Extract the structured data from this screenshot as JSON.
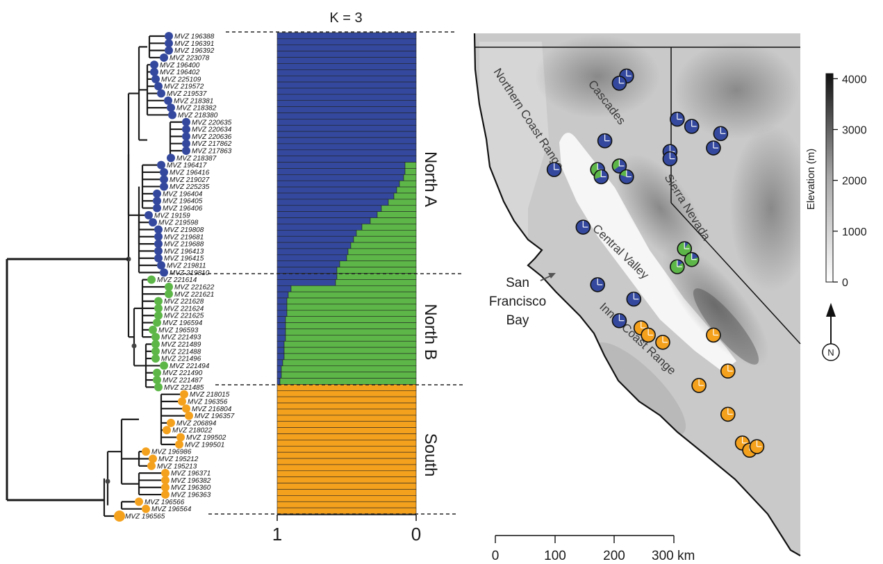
{
  "colors": {
    "north_a": "#34499e",
    "north_b": "#5db748",
    "south": "#f4a11d"
  },
  "title": "K = 3",
  "admixture": {
    "axis_ticks": [
      "1",
      "0"
    ],
    "cluster_labels": [
      "North A",
      "North B",
      "South"
    ],
    "rows_blue_fraction": [
      1,
      1,
      1,
      1,
      1,
      1,
      1,
      1,
      1,
      1,
      1,
      1,
      1,
      1,
      1,
      1,
      1,
      1,
      1,
      1,
      1,
      0.92,
      0.92,
      0.91,
      0.88,
      0.86,
      0.84,
      0.8,
      0.75,
      0.72,
      0.67,
      0.61,
      0.57,
      0.55,
      0.53,
      0.51,
      0.5,
      0.45,
      0.43,
      0.43,
      0.42,
      0.1,
      0.08,
      0.07,
      0.07,
      0.07,
      0.06,
      0.06,
      0.06,
      0.06,
      0.05,
      0.05,
      0.05,
      0.04,
      0.03,
      0.03,
      0.02,
      0,
      0,
      0,
      0,
      0,
      0,
      0,
      0,
      0,
      0,
      0,
      0,
      0,
      0,
      0,
      0,
      0,
      0,
      0,
      0,
      0
    ],
    "rows_orange_fraction": [
      0,
      0,
      0,
      0,
      0,
      0,
      0,
      0,
      0,
      0,
      0,
      0,
      0,
      0,
      0,
      0,
      0,
      0,
      0,
      0,
      0,
      0,
      0,
      0,
      0,
      0,
      0,
      0,
      0,
      0,
      0,
      0,
      0,
      0,
      0,
      0,
      0,
      0,
      0,
      0,
      0,
      0,
      0,
      0,
      0,
      0,
      0,
      0,
      0,
      0,
      0,
      0,
      0,
      0,
      0,
      0,
      0,
      1,
      1,
      1,
      1,
      1,
      1,
      1,
      1,
      1,
      1,
      1,
      1,
      1,
      1,
      1,
      1,
      1,
      1,
      1,
      1,
      1
    ]
  },
  "tree": {
    "tips": [
      {
        "label": "MVZ 196388",
        "group": "north_a"
      },
      {
        "label": "MVZ 196391",
        "group": "north_a"
      },
      {
        "label": "MVZ 196392",
        "group": "north_a"
      },
      {
        "label": "MVZ 223078",
        "group": "north_a"
      },
      {
        "label": "MVZ 196400",
        "group": "north_a"
      },
      {
        "label": "MVZ 196402",
        "group": "north_a"
      },
      {
        "label": "MVZ 225109",
        "group": "north_a"
      },
      {
        "label": "MVZ 219572",
        "group": "north_a"
      },
      {
        "label": "MVZ 219537",
        "group": "north_a"
      },
      {
        "label": "MVZ 218381",
        "group": "north_a"
      },
      {
        "label": "MVZ 218382",
        "group": "north_a"
      },
      {
        "label": "MVZ 218380",
        "group": "north_a"
      },
      {
        "label": "MVZ 220635",
        "group": "north_a"
      },
      {
        "label": "MVZ 220634",
        "group": "north_a"
      },
      {
        "label": "MVZ 220636",
        "group": "north_a"
      },
      {
        "label": "MVZ 217862",
        "group": "north_a"
      },
      {
        "label": "MVZ 217863",
        "group": "north_a"
      },
      {
        "label": "MVZ 218387",
        "group": "north_a"
      },
      {
        "label": "MVZ 196417",
        "group": "north_a"
      },
      {
        "label": "MVZ 196416",
        "group": "north_a"
      },
      {
        "label": "MVZ 219027",
        "group": "north_a"
      },
      {
        "label": "MVZ 225235",
        "group": "north_a"
      },
      {
        "label": "MVZ 196404",
        "group": "north_a"
      },
      {
        "label": "MVZ 196405",
        "group": "north_a"
      },
      {
        "label": "MVZ 196406",
        "group": "north_a"
      },
      {
        "label": "MVZ 19159",
        "group": "north_a"
      },
      {
        "label": "MVZ 219598",
        "group": "north_a"
      },
      {
        "label": "MVZ 219808",
        "group": "north_a"
      },
      {
        "label": "MVZ 219681",
        "group": "north_a"
      },
      {
        "label": "MVZ 219688",
        "group": "north_a"
      },
      {
        "label": "MVZ 196413",
        "group": "north_a"
      },
      {
        "label": "MVZ 196415",
        "group": "north_a"
      },
      {
        "label": "MVZ 219811",
        "group": "north_a"
      },
      {
        "label": "MVZ 219810",
        "group": "north_a"
      },
      {
        "label": "MVZ 221614",
        "group": "north_b"
      },
      {
        "label": "MVZ 221622",
        "group": "north_b"
      },
      {
        "label": "MVZ 221621",
        "group": "north_b"
      },
      {
        "label": "MVZ 221628",
        "group": "north_b"
      },
      {
        "label": "MVZ 221624",
        "group": "north_b"
      },
      {
        "label": "MVZ 221625",
        "group": "north_b"
      },
      {
        "label": "MVZ 196594",
        "group": "north_b"
      },
      {
        "label": "MVZ 196593",
        "group": "north_b"
      },
      {
        "label": "MVZ 221493",
        "group": "north_b"
      },
      {
        "label": "MVZ 221489",
        "group": "north_b"
      },
      {
        "label": "MVZ 221488",
        "group": "north_b"
      },
      {
        "label": "MVZ 221496",
        "group": "north_b"
      },
      {
        "label": "MVZ 221494",
        "group": "north_b"
      },
      {
        "label": "MVZ 221490",
        "group": "north_b"
      },
      {
        "label": "MVZ 221487",
        "group": "north_b"
      },
      {
        "label": "MVZ 221485",
        "group": "north_b"
      },
      {
        "label": "MVZ 218015",
        "group": "south"
      },
      {
        "label": "MVZ 196356",
        "group": "south"
      },
      {
        "label": "MVZ 216804",
        "group": "south"
      },
      {
        "label": "MVZ 196357",
        "group": "south"
      },
      {
        "label": "MVZ 206894",
        "group": "south"
      },
      {
        "label": "MVZ 218022",
        "group": "south"
      },
      {
        "label": "MVZ 199502",
        "group": "south"
      },
      {
        "label": "MVZ 199501",
        "group": "south"
      },
      {
        "label": "MVZ 196986",
        "group": "south"
      },
      {
        "label": "MVZ 195212",
        "group": "south"
      },
      {
        "label": "MVZ 195213",
        "group": "south"
      },
      {
        "label": "MVZ 196371",
        "group": "south"
      },
      {
        "label": "MVZ 196382",
        "group": "south"
      },
      {
        "label": "MVZ 196360",
        "group": "south"
      },
      {
        "label": "MVZ 196363",
        "group": "south"
      },
      {
        "label": "MVZ 196566",
        "group": "south"
      },
      {
        "label": "MVZ 196564",
        "group": "south"
      },
      {
        "label": "MVZ 196565",
        "group": "south"
      }
    ]
  },
  "map": {
    "region_labels": [
      "Northern Coast Range",
      "Cascades",
      "Sierra Nevada",
      "Central Valley",
      "Inner Coast Range"
    ],
    "bay_label": [
      "San",
      "Francisco",
      "Bay"
    ],
    "sample_sites": [
      {
        "lon": -122.3,
        "lat": 41.6,
        "pie": [
          1,
          0,
          0
        ]
      },
      {
        "lon": -122.4,
        "lat": 41.5,
        "pie": [
          1,
          0,
          0
        ]
      },
      {
        "lon": -121.6,
        "lat": 41.0,
        "pie": [
          1,
          0,
          0
        ]
      },
      {
        "lon": -121.4,
        "lat": 40.9,
        "pie": [
          1,
          0,
          0
        ]
      },
      {
        "lon": -121.0,
        "lat": 40.8,
        "pie": [
          1,
          0,
          0
        ]
      },
      {
        "lon": -121.1,
        "lat": 40.6,
        "pie": [
          1,
          0,
          0
        ]
      },
      {
        "lon": -121.7,
        "lat": 40.55,
        "pie": [
          1,
          0,
          0
        ]
      },
      {
        "lon": -121.7,
        "lat": 40.45,
        "pie": [
          1,
          0,
          0
        ]
      },
      {
        "lon": -122.6,
        "lat": 40.7,
        "pie": [
          1,
          0,
          0
        ]
      },
      {
        "lon": -123.3,
        "lat": 40.3,
        "pie": [
          1,
          0,
          0
        ]
      },
      {
        "lon": -122.7,
        "lat": 40.3,
        "pie": [
          0.6,
          0.4,
          0
        ]
      },
      {
        "lon": -122.4,
        "lat": 40.35,
        "pie": [
          0.65,
          0.35,
          0
        ]
      },
      {
        "lon": -122.3,
        "lat": 40.2,
        "pie": [
          0.8,
          0.2,
          0
        ]
      },
      {
        "lon": -122.65,
        "lat": 40.2,
        "pie": [
          0.7,
          0.3,
          0
        ]
      },
      {
        "lon": -122.9,
        "lat": 39.5,
        "pie": [
          1,
          0,
          0
        ]
      },
      {
        "lon": -121.5,
        "lat": 39.2,
        "pie": [
          0.1,
          0.9,
          0
        ]
      },
      {
        "lon": -121.4,
        "lat": 39.05,
        "pie": [
          0.2,
          0.8,
          0
        ]
      },
      {
        "lon": -121.6,
        "lat": 38.95,
        "pie": [
          0.15,
          0.85,
          0
        ]
      },
      {
        "lon": -122.7,
        "lat": 38.7,
        "pie": [
          1,
          0,
          0
        ]
      },
      {
        "lon": -122.2,
        "lat": 38.5,
        "pie": [
          1,
          0,
          0
        ]
      },
      {
        "lon": -122.4,
        "lat": 38.2,
        "pie": [
          1,
          0,
          0
        ]
      },
      {
        "lon": -122.1,
        "lat": 38.1,
        "pie": [
          0,
          0,
          1
        ]
      },
      {
        "lon": -122.0,
        "lat": 38.0,
        "pie": [
          0,
          0,
          1
        ]
      },
      {
        "lon": -121.8,
        "lat": 37.9,
        "pie": [
          0,
          0,
          1
        ]
      },
      {
        "lon": -121.1,
        "lat": 38.0,
        "pie": [
          0,
          0,
          1
        ]
      },
      {
        "lon": -120.9,
        "lat": 37.5,
        "pie": [
          0,
          0,
          1
        ]
      },
      {
        "lon": -121.3,
        "lat": 37.3,
        "pie": [
          0,
          0,
          1
        ]
      },
      {
        "lon": -120.9,
        "lat": 36.9,
        "pie": [
          0,
          0,
          1
        ]
      },
      {
        "lon": -120.7,
        "lat": 36.5,
        "pie": [
          0,
          0,
          1
        ]
      },
      {
        "lon": -120.6,
        "lat": 36.4,
        "pie": [
          0,
          0,
          1
        ]
      },
      {
        "lon": -120.5,
        "lat": 36.45,
        "pie": [
          0,
          0,
          1
        ]
      }
    ],
    "legend": {
      "title": "Elevation (m)",
      "ticks": [
        "4000",
        "3000",
        "2000",
        "1000",
        "0"
      ],
      "min": 0,
      "max": 4100
    },
    "north_label": "N",
    "scale_bar": {
      "ticks": [
        "0",
        "100",
        "200",
        "300 km"
      ]
    }
  }
}
